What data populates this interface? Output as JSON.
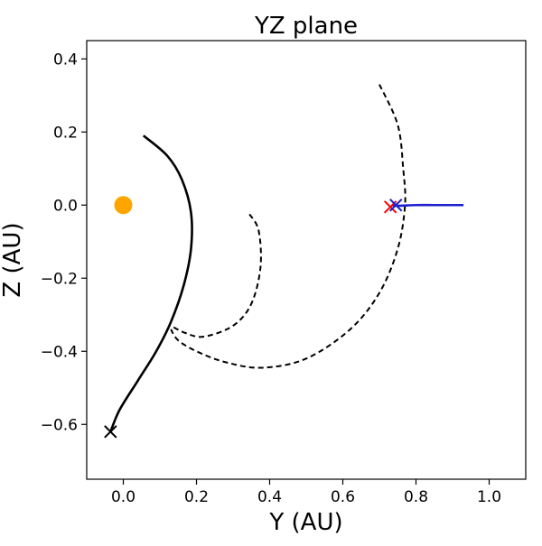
{
  "chart_data": {
    "type": "line",
    "title": "YZ plane",
    "xlabel": "Y (AU)",
    "ylabel": "Z (AU)",
    "xlim": [
      -0.1,
      1.1
    ],
    "ylim": [
      -0.75,
      0.45
    ],
    "xticks": [
      0.0,
      0.2,
      0.4,
      0.6,
      0.8,
      1.0
    ],
    "xtick_labels": [
      "0.0",
      "0.2",
      "0.4",
      "0.6",
      "0.8",
      "1.0"
    ],
    "yticks": [
      -0.6,
      -0.4,
      -0.2,
      0.0,
      0.2,
      0.4
    ],
    "ytick_labels": [
      "−0.6",
      "−0.4",
      "−0.2",
      "0.0",
      "0.2",
      "0.4"
    ],
    "grid": false,
    "legend": "none",
    "series": [
      {
        "style": "solid",
        "color": "#000000",
        "points": [
          [
            0.055,
            0.19
          ],
          [
            0.12,
            0.135
          ],
          [
            0.16,
            0.07
          ],
          [
            0.185,
            -0.02
          ],
          [
            0.185,
            -0.12
          ],
          [
            0.165,
            -0.22
          ],
          [
            0.13,
            -0.32
          ],
          [
            0.09,
            -0.4
          ],
          [
            0.04,
            -0.48
          ],
          [
            -0.01,
            -0.56
          ],
          [
            -0.035,
            -0.62
          ]
        ]
      },
      {
        "style": "dashed",
        "color": "#000000",
        "points": [
          [
            0.345,
            -0.025
          ],
          [
            0.37,
            -0.07
          ],
          [
            0.375,
            -0.17
          ],
          [
            0.35,
            -0.27
          ],
          [
            0.3,
            -0.33
          ],
          [
            0.22,
            -0.36
          ],
          [
            0.17,
            -0.35
          ],
          [
            0.13,
            -0.33
          ]
        ]
      },
      {
        "style": "dashed",
        "color": "#000000",
        "points": [
          [
            0.7,
            0.33
          ],
          [
            0.75,
            0.22
          ],
          [
            0.765,
            0.1
          ],
          [
            0.77,
            0.0
          ],
          [
            0.75,
            -0.12
          ],
          [
            0.7,
            -0.24
          ],
          [
            0.62,
            -0.34
          ],
          [
            0.5,
            -0.42
          ],
          [
            0.38,
            -0.445
          ],
          [
            0.28,
            -0.43
          ],
          [
            0.2,
            -0.4
          ],
          [
            0.15,
            -0.37
          ],
          [
            0.13,
            -0.34
          ]
        ]
      },
      {
        "style": "solid",
        "color": "#1f1fcf",
        "points": [
          [
            0.735,
            0.0
          ],
          [
            0.75,
            -0.002
          ],
          [
            0.8,
            0.0
          ],
          [
            0.85,
            0.0
          ],
          [
            0.9,
            0.0
          ],
          [
            0.93,
            0.0
          ]
        ]
      }
    ],
    "markers": [
      {
        "type": "circle",
        "color": "#ffa500",
        "x": 0.0,
        "y": 0.0
      },
      {
        "type": "x",
        "color": "#000000",
        "x": -0.035,
        "y": -0.62
      },
      {
        "type": "x",
        "color": "#ff0000",
        "x": 0.73,
        "y": -0.005
      },
      {
        "type": "x",
        "color": "#1f1fcf",
        "x": 0.745,
        "y": 0.0
      }
    ]
  }
}
